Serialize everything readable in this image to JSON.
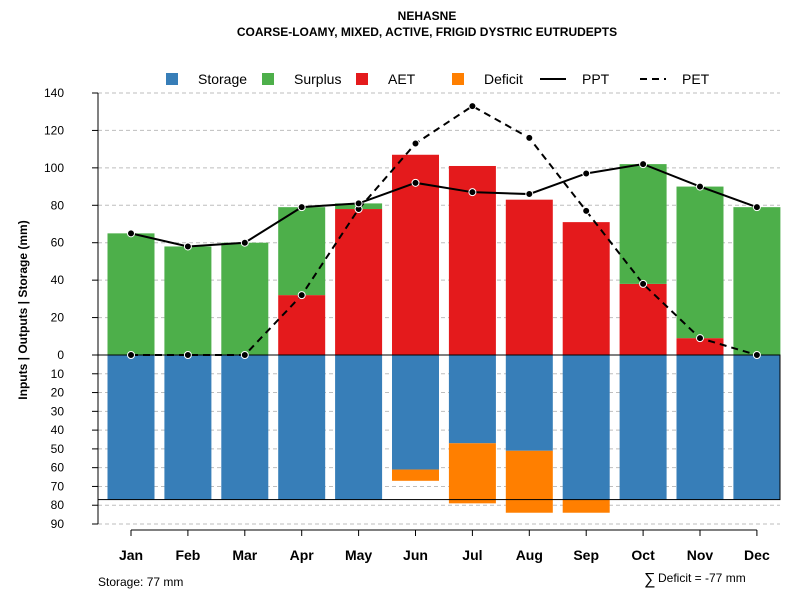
{
  "chart_data": {
    "type": "bar",
    "title": "NEHASNE",
    "subtitle": "COARSE-LOAMY, MIXED, ACTIVE, FRIGID DYSTRIC EUTRUDEPTS",
    "ylabel": "Inputs | Outputs | Storage    (mm)",
    "ylim_upper": [
      0,
      140
    ],
    "ylim_lower": [
      0,
      90
    ],
    "yticks_upper": [
      0,
      20,
      40,
      60,
      80,
      100,
      120,
      140
    ],
    "yticks_lower": [
      10,
      20,
      30,
      40,
      50,
      60,
      70,
      80,
      90
    ],
    "categories": [
      "Jan",
      "Feb",
      "Mar",
      "Apr",
      "May",
      "Jun",
      "Jul",
      "Aug",
      "Sep",
      "Oct",
      "Nov",
      "Dec"
    ],
    "legend": [
      {
        "key": "storage",
        "label": "Storage",
        "kind": "box"
      },
      {
        "key": "surplus",
        "label": "Surplus",
        "kind": "box"
      },
      {
        "key": "aet",
        "label": "AET",
        "kind": "box"
      },
      {
        "key": "deficit",
        "label": "Deficit",
        "kind": "box"
      },
      {
        "key": "ppt",
        "label": "PPT",
        "kind": "line"
      },
      {
        "key": "pet",
        "label": "PET",
        "kind": "dash"
      }
    ],
    "series": [
      {
        "name": "PPT",
        "values": [
          65,
          58,
          60,
          79,
          81,
          92,
          87,
          86,
          97,
          102,
          90,
          79
        ]
      },
      {
        "name": "PET",
        "values": [
          0,
          0,
          0,
          32,
          78,
          113,
          133,
          116,
          77,
          38,
          9,
          0
        ]
      },
      {
        "name": "AET",
        "values": [
          0,
          0,
          0,
          32,
          78,
          107,
          101,
          83,
          71,
          38,
          9,
          0
        ]
      },
      {
        "name": "Surplus",
        "values": [
          65,
          58,
          60,
          47,
          3,
          0,
          0,
          0,
          0,
          64,
          81,
          79
        ]
      },
      {
        "name": "Storage",
        "values": [
          77,
          77,
          77,
          77,
          77,
          61,
          47,
          51,
          77,
          77,
          77,
          77
        ]
      },
      {
        "name": "Deficit",
        "values": [
          0,
          0,
          0,
          0,
          0,
          6,
          32,
          33,
          7,
          0,
          0,
          0
        ]
      }
    ],
    "storage_capacity": 77,
    "footer_left": "Storage: 77 mm",
    "footer_right_symbol": "∑",
    "footer_right": "Deficit = -77 mm",
    "colors": {
      "storage": "#377EB8",
      "surplus": "#4DAF4A",
      "aet": "#E41A1C",
      "deficit": "#FF7F00",
      "line": "#000000",
      "grid": "#BEBEBE"
    }
  }
}
